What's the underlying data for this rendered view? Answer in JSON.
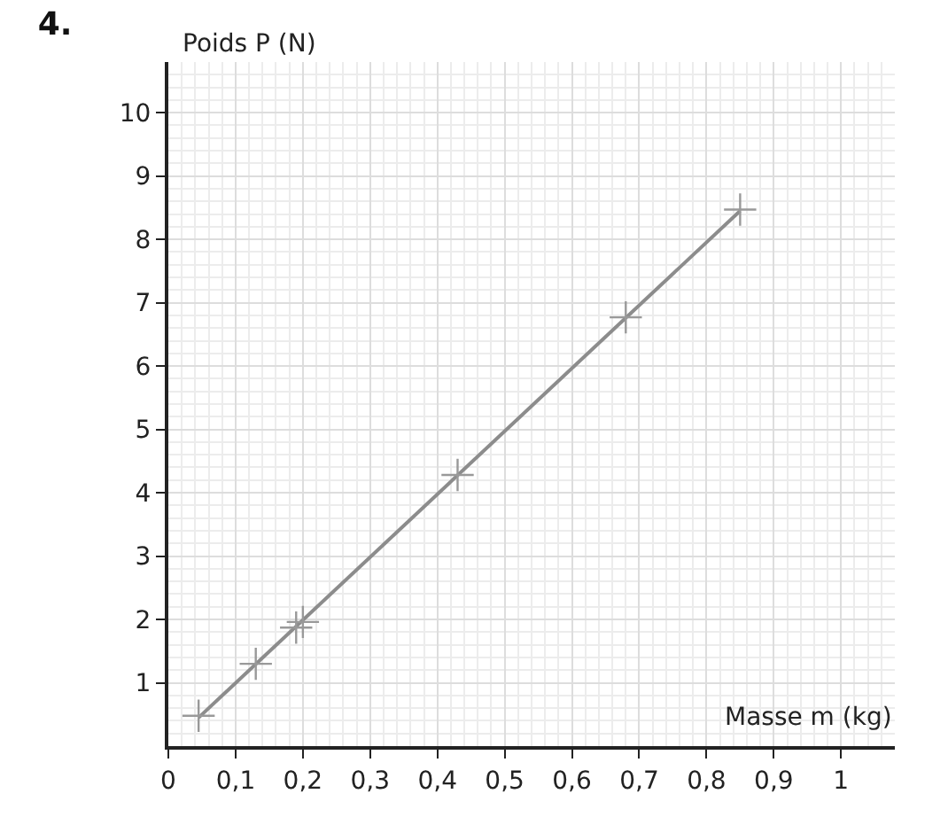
{
  "chart_data": {
    "type": "scatter",
    "title": "4.",
    "xlabel": "Masse m (kg)",
    "ylabel": "Poids P (N)",
    "xlim": [
      0,
      1.08
    ],
    "ylim": [
      0,
      10.8
    ],
    "xticks": [
      {
        "value": 0,
        "label": "0"
      },
      {
        "value": 0.1,
        "label": "0,1"
      },
      {
        "value": 0.2,
        "label": "0,2"
      },
      {
        "value": 0.3,
        "label": "0,3"
      },
      {
        "value": 0.4,
        "label": "0,4"
      },
      {
        "value": 0.5,
        "label": "0,5"
      },
      {
        "value": 0.6,
        "label": "0,6"
      },
      {
        "value": 0.7,
        "label": "0,7"
      },
      {
        "value": 0.8,
        "label": "0,8"
      },
      {
        "value": 0.9,
        "label": "0,9"
      },
      1
    ],
    "yticks": [
      1,
      2,
      3,
      4,
      5,
      6,
      7,
      8,
      9,
      10
    ],
    "grid": true,
    "marker": "cross",
    "series": [
      {
        "color": "#999999",
        "x": [
          0.045,
          0.13,
          0.19,
          0.2,
          0.43,
          0.68,
          0.85
        ],
        "values": [
          0.48,
          1.3,
          1.87,
          1.96,
          4.28,
          6.77,
          8.47
        ]
      },
      {
        "type": "line",
        "marker": "none",
        "color": "#8c8c8c",
        "x": [
          0.045,
          0.85
        ],
        "values": [
          0.45,
          8.45
        ]
      }
    ]
  }
}
